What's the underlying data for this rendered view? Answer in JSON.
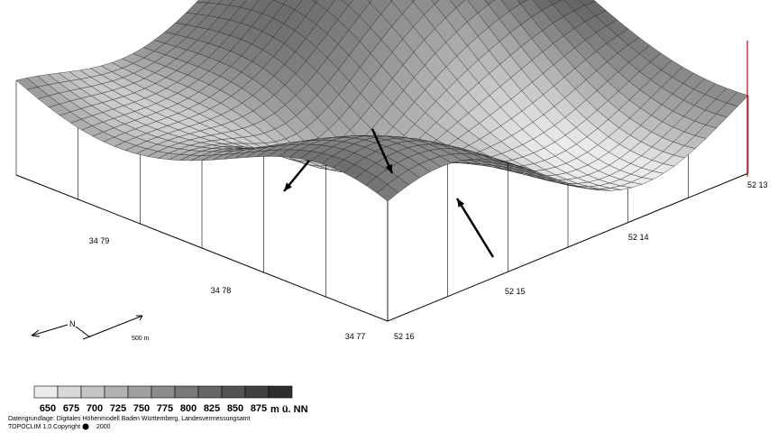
{
  "axes": {
    "left_ticks": [
      "34 79",
      "34 78",
      "34 77"
    ],
    "right_ticks": [
      "52 16",
      "52 15",
      "52 14",
      "52 13"
    ]
  },
  "north": "N",
  "scale": "500 m",
  "legend": {
    "labels": [
      "650",
      "675",
      "700",
      "725",
      "750",
      "775",
      "800",
      "825",
      "850",
      "875"
    ],
    "unit": "m ü. NN"
  },
  "footer": {
    "source": "Datengrundlage: Digitales Höhenmodell Baden Württemberg, Landesvermessungsamt",
    "copyright": "TOPOCLIM 1.0 Copyright",
    "year": "2000"
  }
}
